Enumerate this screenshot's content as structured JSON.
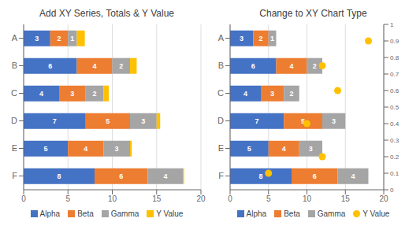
{
  "chart_data": [
    {
      "type": "bar",
      "title": "Add XY Series, Totals & Y Value",
      "orientation": "horizontal",
      "stacked": true,
      "categories": [
        "A",
        "B",
        "C",
        "D",
        "E",
        "F"
      ],
      "series": [
        {
          "name": "Alpha",
          "color": "#4472C4",
          "values": [
            3,
            6,
            4,
            7,
            5,
            8
          ],
          "data_labels": true
        },
        {
          "name": "Beta",
          "color": "#ED7D31",
          "values": [
            2,
            4,
            3,
            5,
            4,
            6
          ],
          "data_labels": true
        },
        {
          "name": "Gamma",
          "color": "#A5A5A5",
          "values": [
            1,
            2,
            2,
            3,
            3,
            4
          ],
          "data_labels": true
        },
        {
          "name": "Y Value",
          "color": "#FFC000",
          "values": [
            0.9,
            0.75,
            0.6,
            0.4,
            0.2,
            0.1
          ]
        }
      ],
      "xlim": [
        0,
        20
      ],
      "xticks": [
        0,
        5,
        10,
        15,
        20
      ],
      "grid": true,
      "legend": "bottom"
    },
    {
      "type": "bar",
      "title": "Change to XY Chart Type",
      "orientation": "horizontal",
      "stacked": true,
      "categories": [
        "A",
        "B",
        "C",
        "D",
        "E",
        "F"
      ],
      "series": [
        {
          "name": "Alpha",
          "color": "#4472C4",
          "values": [
            3,
            6,
            4,
            7,
            5,
            8
          ],
          "data_labels": true
        },
        {
          "name": "Beta",
          "color": "#ED7D31",
          "values": [
            2,
            4,
            3,
            5,
            4,
            6
          ],
          "data_labels": true
        },
        {
          "name": "Gamma",
          "color": "#A5A5A5",
          "values": [
            1,
            2,
            2,
            3,
            3,
            4
          ],
          "data_labels": true
        },
        {
          "name": "Y Value",
          "type": "scatter",
          "color": "#FFC000",
          "axis": "y2",
          "marker": "circle",
          "x": [
            18,
            12,
            14,
            10,
            12,
            5
          ],
          "values": [
            0.9,
            0.75,
            0.6,
            0.4,
            0.2,
            0.1
          ]
        }
      ],
      "xlim": [
        0,
        20
      ],
      "xticks": [
        0,
        5,
        10,
        15,
        20
      ],
      "y2lim": [
        0,
        1
      ],
      "y2ticks": [
        0,
        0.1,
        0.2,
        0.3,
        0.4,
        0.5,
        0.6,
        0.7,
        0.8,
        0.9,
        1
      ],
      "grid": true,
      "legend": "bottom"
    }
  ]
}
